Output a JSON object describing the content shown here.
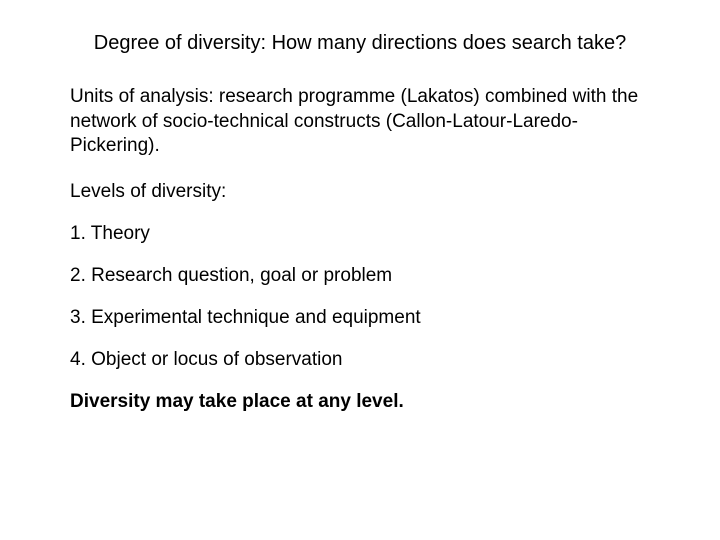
{
  "title": "Degree of diversity:  How many directions does search take?",
  "units_paragraph": "Units of analysis: research programme (Lakatos) combined with the network of socio-technical constructs (Callon-Latour-Laredo-Pickering).",
  "levels_label": "Levels of diversity:",
  "items": [
    "1. Theory",
    "2. Research question, goal or problem",
    "3. Experimental technique and equipment",
    "4. Object or locus of observation"
  ],
  "conclusion": "Diversity may take place at any level.",
  "styling": {
    "background_color": "#ffffff",
    "text_color": "#000000",
    "font_family": "Verdana, Geneva, sans-serif",
    "title_fontsize": 20,
    "body_fontsize": 19,
    "title_align": "center",
    "conclusion_weight": "bold"
  }
}
